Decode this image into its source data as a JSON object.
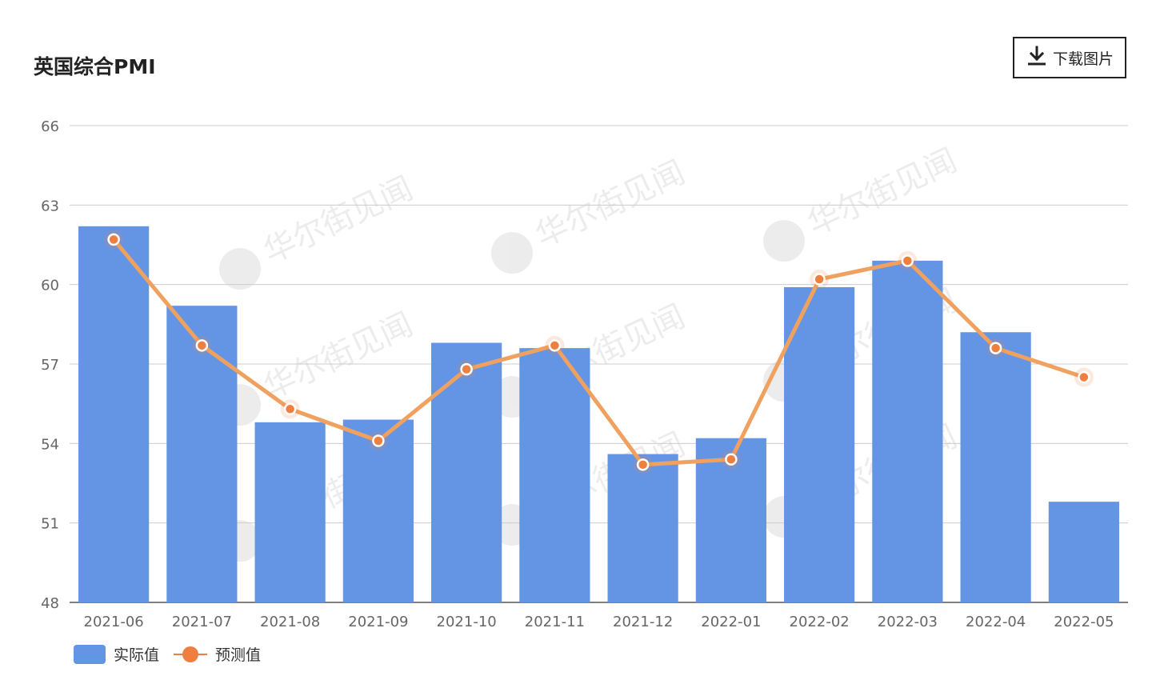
{
  "header": {
    "title": "英国综合PMI",
    "download_label": "下载图片"
  },
  "watermark": "华尔街见闻",
  "colors": {
    "bar": "#6495e4",
    "line": "#f0a160",
    "marker": "#ef7f3f",
    "grid": "#cccccc",
    "axis_text": "#666666"
  },
  "chart_data": {
    "type": "bar",
    "title": "英国综合PMI",
    "categories": [
      "2021-06",
      "2021-07",
      "2021-08",
      "2021-09",
      "2021-10",
      "2021-11",
      "2021-12",
      "2022-01",
      "2022-02",
      "2022-03",
      "2022-04",
      "2022-05"
    ],
    "series": [
      {
        "name": "实际值",
        "type": "bar",
        "values": [
          62.2,
          59.2,
          54.8,
          54.9,
          57.8,
          57.6,
          53.6,
          54.2,
          59.9,
          60.9,
          58.2,
          51.8
        ]
      },
      {
        "name": "预测值",
        "type": "line",
        "values": [
          61.7,
          57.7,
          55.3,
          54.1,
          56.8,
          57.7,
          53.2,
          53.4,
          60.2,
          60.9,
          57.6,
          56.5
        ]
      }
    ],
    "y_ticks": [
      48,
      51,
      54,
      57,
      60,
      63,
      66
    ],
    "ylim": [
      48,
      66
    ],
    "grid": true,
    "legend": "bottom-left"
  }
}
